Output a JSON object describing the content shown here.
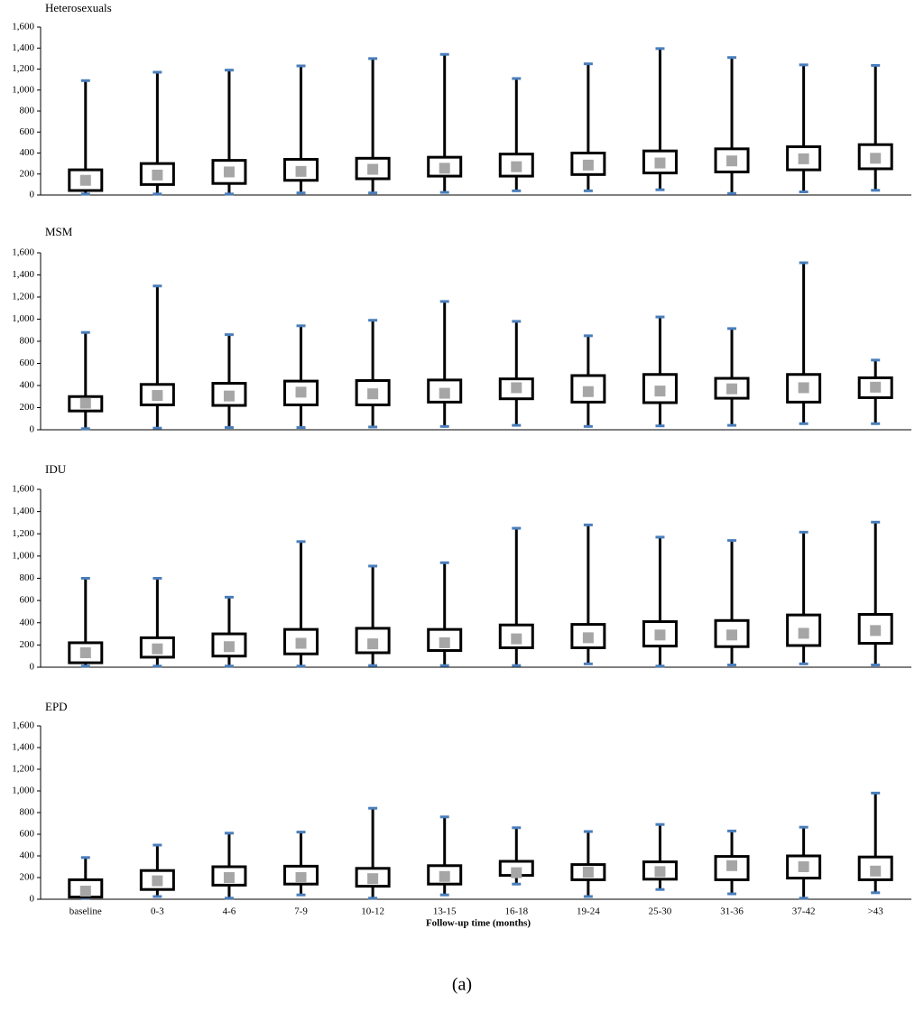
{
  "chart_data": [
    {
      "type": "box",
      "title": "Heterosexuals",
      "ylim": [
        0,
        1600
      ],
      "yticks": [
        0,
        200,
        400,
        600,
        800,
        {
          "value": 1000,
          "label": "1,000"
        },
        {
          "value": 1200,
          "label": "1,200"
        },
        {
          "value": 1400,
          "label": "1,400"
        },
        {
          "value": 1600,
          "label": "1,600"
        }
      ],
      "box_color": "#000000",
      "cap_color": "#4a7ebb",
      "marker_color": "#a6a6a6",
      "whisker_min": [
        10,
        10,
        10,
        20,
        20,
        25,
        40,
        40,
        50,
        15,
        30,
        45
      ],
      "q1": [
        43,
        100,
        110,
        140,
        155,
        180,
        180,
        195,
        210,
        220,
        240,
        250
      ],
      "center": [
        140,
        190,
        220,
        225,
        245,
        255,
        270,
        285,
        305,
        325,
        345,
        350
      ],
      "q3": [
        240,
        300,
        330,
        340,
        350,
        360,
        390,
        400,
        420,
        440,
        460,
        480
      ],
      "whisker_max": [
        1090,
        1170,
        1190,
        1230,
        1300,
        1340,
        1110,
        1250,
        1395,
        1310,
        1240,
        1235
      ]
    },
    {
      "type": "box",
      "title": "MSM",
      "ylim": [
        0,
        1600
      ],
      "yticks": [
        0,
        200,
        400,
        600,
        800,
        {
          "value": 1000,
          "label": "1,000"
        },
        {
          "value": 1200,
          "label": "1,200"
        },
        {
          "value": 1400,
          "label": "1,400"
        },
        {
          "value": 1600,
          "label": "1,600"
        }
      ],
      "box_color": "#000000",
      "cap_color": "#4a7ebb",
      "marker_color": "#a6a6a6",
      "whisker_min": [
        10,
        15,
        20,
        20,
        25,
        30,
        40,
        30,
        35,
        40,
        55,
        55
      ],
      "q1": [
        170,
        225,
        220,
        225,
        225,
        250,
        280,
        250,
        245,
        285,
        250,
        290
      ],
      "center": [
        240,
        310,
        305,
        340,
        325,
        330,
        380,
        345,
        350,
        370,
        380,
        385
      ],
      "q3": [
        300,
        410,
        420,
        440,
        445,
        450,
        460,
        490,
        500,
        465,
        500,
        470
      ],
      "whisker_max": [
        880,
        1300,
        860,
        940,
        990,
        1160,
        980,
        850,
        1020,
        915,
        1510,
        630
      ]
    },
    {
      "type": "box",
      "title": "IDU",
      "ylim": [
        0,
        1600
      ],
      "yticks": [
        0,
        200,
        400,
        600,
        800,
        {
          "value": 1000,
          "label": "1,000"
        },
        {
          "value": 1200,
          "label": "1,200"
        },
        {
          "value": 1400,
          "label": "1,400"
        },
        {
          "value": 1600,
          "label": "1,600"
        }
      ],
      "box_color": "#000000",
      "cap_color": "#4a7ebb",
      "marker_color": "#a6a6a6",
      "whisker_min": [
        10,
        10,
        10,
        10,
        15,
        15,
        15,
        30,
        10,
        20,
        30,
        20
      ],
      "q1": [
        40,
        90,
        100,
        120,
        130,
        150,
        175,
        175,
        190,
        185,
        195,
        215
      ],
      "center": [
        130,
        165,
        185,
        215,
        210,
        220,
        255,
        265,
        290,
        290,
        305,
        330
      ],
      "q3": [
        220,
        265,
        300,
        340,
        350,
        340,
        380,
        385,
        410,
        420,
        470,
        475
      ],
      "whisker_max": [
        800,
        800,
        630,
        1130,
        910,
        940,
        1250,
        1280,
        1170,
        1140,
        1215,
        1305
      ]
    },
    {
      "type": "box",
      "title": "EPD",
      "ylim": [
        0,
        1600
      ],
      "yticks": [
        0,
        200,
        400,
        600,
        800,
        {
          "value": 1000,
          "label": "1,000"
        },
        {
          "value": 1200,
          "label": "1,200"
        },
        {
          "value": 1400,
          "label": "1,400"
        },
        {
          "value": 1600,
          "label": "1,600"
        }
      ],
      "box_color": "#000000",
      "cap_color": "#4a7ebb",
      "marker_color": "#a6a6a6",
      "categories": [
        "baseline",
        "0-3",
        "4-6",
        "7-9",
        "10-12",
        "13-15",
        "16-18",
        "19-24",
        "25-30",
        "31-36",
        "37-42",
        ">43"
      ],
      "xlabel": "Follow-up time (months)",
      "whisker_min": [
        10,
        25,
        10,
        40,
        10,
        40,
        140,
        25,
        90,
        50,
        10,
        60
      ],
      "q1": [
        20,
        90,
        130,
        140,
        120,
        140,
        220,
        180,
        185,
        180,
        195,
        180
      ],
      "center": [
        75,
        170,
        200,
        200,
        190,
        210,
        245,
        250,
        255,
        310,
        300,
        260
      ],
      "q3": [
        180,
        265,
        300,
        305,
        285,
        310,
        350,
        320,
        345,
        395,
        400,
        390
      ],
      "whisker_max": [
        385,
        500,
        610,
        620,
        840,
        760,
        660,
        625,
        690,
        630,
        665,
        980
      ]
    }
  ],
  "caption": "(a)"
}
